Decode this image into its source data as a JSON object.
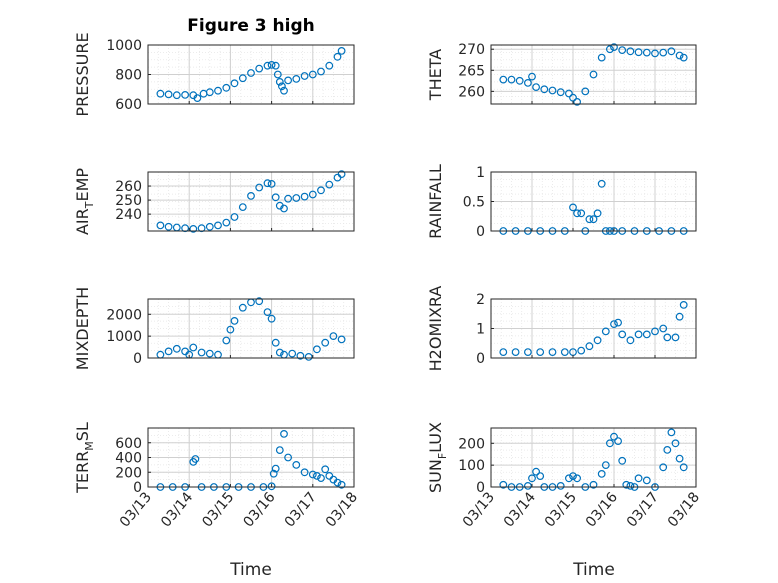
{
  "figure": {
    "title": "Figure 3 high",
    "xlabel": "Time"
  },
  "colors": {
    "marker": "#0072BD",
    "axis": "#262626"
  },
  "chart_data": [
    {
      "type": "scatter",
      "ylabel": "PRESSURE",
      "ylim": [
        600,
        1000
      ],
      "yticks": [
        600,
        800,
        1000
      ],
      "xlim": [
        0,
        5
      ],
      "xticks": [
        "03/13",
        "03/14",
        "03/15",
        "03/16",
        "03/17",
        "03/18"
      ],
      "x": [
        0.3,
        0.5,
        0.7,
        0.9,
        1.1,
        1.2,
        1.35,
        1.5,
        1.7,
        1.9,
        2.1,
        2.3,
        2.5,
        2.7,
        2.9,
        3.0,
        3.1,
        3.15,
        3.2,
        3.25,
        3.3,
        3.4,
        3.6,
        3.8,
        4.0,
        4.2,
        4.4,
        4.6,
        4.7
      ],
      "y": [
        670,
        665,
        660,
        662,
        660,
        640,
        670,
        680,
        690,
        710,
        740,
        775,
        810,
        840,
        860,
        865,
        860,
        800,
        750,
        720,
        690,
        760,
        770,
        790,
        800,
        820,
        860,
        920,
        960
      ]
    },
    {
      "type": "scatter",
      "ylabel": "THETA",
      "ylim": [
        257,
        271
      ],
      "yticks": [
        260,
        265,
        270
      ],
      "xlim": [
        0,
        5
      ],
      "xticks": [
        "03/13",
        "03/14",
        "03/15",
        "03/16",
        "03/17",
        "03/18"
      ],
      "x": [
        0.3,
        0.5,
        0.7,
        0.9,
        1.0,
        1.1,
        1.3,
        1.5,
        1.7,
        1.9,
        2.0,
        2.1,
        2.3,
        2.5,
        2.7,
        2.9,
        3.0,
        3.2,
        3.4,
        3.6,
        3.8,
        4.0,
        4.2,
        4.4,
        4.6,
        4.7
      ],
      "y": [
        262.8,
        262.8,
        262.5,
        262.0,
        263.5,
        261.0,
        260.5,
        260.2,
        259.8,
        259.5,
        258.5,
        257.5,
        260.0,
        264.0,
        268.0,
        270.0,
        270.5,
        269.8,
        269.5,
        269.3,
        269.2,
        269.0,
        269.2,
        269.5,
        268.5,
        268.0
      ]
    },
    {
      "type": "scatter",
      "ylabel": "AIR_TEMP",
      "ylim": [
        228,
        270
      ],
      "yticks": [
        240,
        250,
        260
      ],
      "xlim": [
        0,
        5
      ],
      "xticks": [
        "03/13",
        "03/14",
        "03/15",
        "03/16",
        "03/17",
        "03/18"
      ],
      "x": [
        0.3,
        0.5,
        0.7,
        0.9,
        1.1,
        1.3,
        1.5,
        1.7,
        1.9,
        2.1,
        2.3,
        2.5,
        2.7,
        2.9,
        3.0,
        3.1,
        3.2,
        3.3,
        3.4,
        3.6,
        3.8,
        4.0,
        4.2,
        4.4,
        4.6,
        4.7
      ],
      "y": [
        232.0,
        231.0,
        230.5,
        230.0,
        229.5,
        230.0,
        231.0,
        232.0,
        234.0,
        238.0,
        245.0,
        253.0,
        259.0,
        262.0,
        261.5,
        252.0,
        246.0,
        244.0,
        251.0,
        251.5,
        252.5,
        254.0,
        257.0,
        261.0,
        266.0,
        268.5
      ]
    },
    {
      "type": "scatter",
      "ylabel": "RAINFALL",
      "ylim": [
        0,
        1
      ],
      "yticks": [
        0,
        0.5,
        1
      ],
      "xlim": [
        0,
        5
      ],
      "xticks": [
        "03/13",
        "03/14",
        "03/15",
        "03/16",
        "03/17",
        "03/18"
      ],
      "x": [
        0.3,
        0.6,
        0.9,
        1.2,
        1.5,
        1.8,
        2.0,
        2.1,
        2.2,
        2.3,
        2.4,
        2.5,
        2.6,
        2.7,
        2.8,
        2.9,
        3.0,
        3.2,
        3.5,
        3.8,
        4.1,
        4.4,
        4.7
      ],
      "y": [
        0,
        0,
        0,
        0,
        0,
        0,
        0.4,
        0.3,
        0.3,
        0,
        0.2,
        0.2,
        0.3,
        0.8,
        0,
        0,
        0,
        0,
        0,
        0,
        0,
        0,
        0
      ]
    },
    {
      "type": "scatter",
      "ylabel": "MIXDEPTH",
      "ylim": [
        0,
        2700
      ],
      "yticks": [
        0,
        1000,
        2000
      ],
      "xlim": [
        0,
        5
      ],
      "xticks": [
        "03/13",
        "03/14",
        "03/15",
        "03/16",
        "03/17",
        "03/18"
      ],
      "x": [
        0.3,
        0.5,
        0.7,
        0.9,
        1.0,
        1.1,
        1.3,
        1.5,
        1.7,
        1.9,
        2.0,
        2.1,
        2.3,
        2.5,
        2.7,
        2.9,
        3.0,
        3.1,
        3.2,
        3.3,
        3.5,
        3.7,
        3.9,
        4.1,
        4.3,
        4.5,
        4.7
      ],
      "y": [
        150,
        300,
        420,
        300,
        150,
        480,
        250,
        200,
        150,
        800,
        1300,
        1700,
        2300,
        2550,
        2600,
        2100,
        1800,
        700,
        250,
        150,
        200,
        100,
        50,
        400,
        700,
        1000,
        850
      ]
    },
    {
      "type": "scatter",
      "ylabel": "H2OMIXRA",
      "ylim": [
        0,
        2
      ],
      "yticks": [
        0,
        1,
        2
      ],
      "xlim": [
        0,
        5
      ],
      "xticks": [
        "03/13",
        "03/14",
        "03/15",
        "03/16",
        "03/17",
        "03/18"
      ],
      "x": [
        0.3,
        0.6,
        0.9,
        1.2,
        1.5,
        1.8,
        2.0,
        2.2,
        2.4,
        2.6,
        2.8,
        3.0,
        3.1,
        3.2,
        3.4,
        3.6,
        3.8,
        4.0,
        4.2,
        4.3,
        4.5,
        4.6,
        4.7
      ],
      "y": [
        0.2,
        0.2,
        0.2,
        0.2,
        0.2,
        0.2,
        0.2,
        0.25,
        0.4,
        0.6,
        0.9,
        1.15,
        1.2,
        0.8,
        0.6,
        0.8,
        0.8,
        0.9,
        1.0,
        0.7,
        0.7,
        1.4,
        1.8
      ]
    },
    {
      "type": "scatter",
      "ylabel": "TERR_MSL",
      "ylim": [
        0,
        800
      ],
      "yticks": [
        0,
        200,
        400,
        600
      ],
      "xlim": [
        0,
        5
      ],
      "xticks": [
        "03/13",
        "03/14",
        "03/15",
        "03/16",
        "03/17",
        "03/18"
      ],
      "x": [
        0.3,
        0.6,
        0.9,
        1.1,
        1.15,
        1.3,
        1.6,
        1.9,
        2.2,
        2.5,
        2.8,
        3.0,
        3.05,
        3.1,
        3.2,
        3.3,
        3.4,
        3.6,
        3.8,
        4.0,
        4.1,
        4.2,
        4.3,
        4.4,
        4.5,
        4.6,
        4.7
      ],
      "y": [
        0,
        0,
        0,
        340,
        380,
        0,
        0,
        0,
        0,
        0,
        0,
        10,
        180,
        250,
        500,
        720,
        400,
        300,
        200,
        170,
        150,
        120,
        240,
        150,
        100,
        60,
        30
      ]
    },
    {
      "type": "scatter",
      "ylabel": "SUN_FLUX",
      "ylim": [
        0,
        270
      ],
      "yticks": [
        0,
        100,
        200
      ],
      "xlim": [
        0,
        5
      ],
      "xticks": [
        "03/13",
        "03/14",
        "03/15",
        "03/16",
        "03/17",
        "03/18"
      ],
      "x": [
        0.3,
        0.5,
        0.7,
        0.9,
        1.0,
        1.1,
        1.2,
        1.3,
        1.5,
        1.7,
        1.9,
        2.0,
        2.1,
        2.3,
        2.5,
        2.7,
        2.8,
        2.9,
        3.0,
        3.1,
        3.2,
        3.3,
        3.4,
        3.5,
        3.6,
        3.8,
        4.0,
        4.2,
        4.3,
        4.4,
        4.5,
        4.6,
        4.7
      ],
      "y": [
        10,
        0,
        0,
        5,
        40,
        70,
        50,
        0,
        0,
        5,
        40,
        50,
        40,
        0,
        10,
        60,
        100,
        200,
        230,
        210,
        120,
        10,
        5,
        0,
        40,
        30,
        0,
        90,
        170,
        250,
        200,
        130,
        90
      ]
    }
  ]
}
